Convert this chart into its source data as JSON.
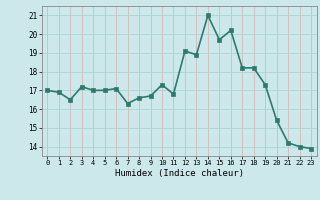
{
  "x": [
    0,
    1,
    2,
    3,
    4,
    5,
    6,
    7,
    8,
    9,
    10,
    11,
    12,
    13,
    14,
    15,
    16,
    17,
    18,
    19,
    20,
    21,
    22,
    23
  ],
  "y": [
    17.0,
    16.9,
    16.5,
    17.2,
    17.0,
    17.0,
    17.1,
    16.3,
    16.6,
    16.7,
    17.3,
    16.8,
    19.1,
    18.9,
    21.0,
    19.7,
    20.2,
    18.2,
    18.2,
    17.3,
    15.4,
    14.2,
    14.0,
    13.9
  ],
  "xlabel": "Humidex (Indice chaleur)",
  "ylim": [
    13.5,
    21.5
  ],
  "xlim": [
    -0.5,
    23.5
  ],
  "yticks": [
    14,
    15,
    16,
    17,
    18,
    19,
    20,
    21
  ],
  "xticks": [
    0,
    1,
    2,
    3,
    4,
    5,
    6,
    7,
    8,
    9,
    10,
    11,
    12,
    13,
    14,
    15,
    16,
    17,
    18,
    19,
    20,
    21,
    22,
    23
  ],
  "line_color": "#2d7a6e",
  "bg_color": "#cce8ea",
  "grid_v_color": "#d4b8b8",
  "grid_h_color": "#aed4d4",
  "marker_size": 2.5,
  "line_width": 1.2
}
